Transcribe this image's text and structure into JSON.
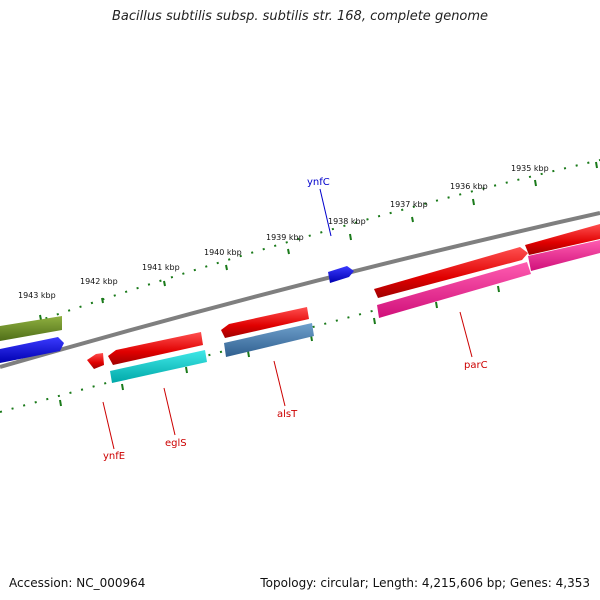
{
  "title": "Bacillus subtilis subsp. subtilis str. 168, complete genome",
  "footer": {
    "accession": "Accession: NC_000964",
    "summary": "Topology: circular; Length: 4,215,606 bp; Genes: 4,353"
  },
  "scale_ticks": [
    "1943 kbp",
    "1942 kbp",
    "1941 kbp",
    "1940 kbp",
    "1939 kbp",
    "1938 kbp",
    "1937 kbp",
    "1936 kbp",
    "1935 kbp"
  ],
  "gene_labels": [
    {
      "name": "ynfC",
      "color": "#0000cc"
    },
    {
      "name": "ynfE",
      "color": "#cc0000"
    },
    {
      "name": "eglS",
      "color": "#cc0000"
    },
    {
      "name": "alsT",
      "color": "#cc0000"
    },
    {
      "name": "parC",
      "color": "#cc0000"
    }
  ],
  "colors": {
    "backbone": "#7f7f7f",
    "ticks": "#1a7a1a",
    "red_gene": "#ee0000",
    "blue_gene": "#0000ee",
    "olive_gene": "#6b8e23",
    "cyan_gene": "#00c8c8",
    "steel_gene": "#4682b4",
    "magenta_gene": "#ff1493"
  }
}
